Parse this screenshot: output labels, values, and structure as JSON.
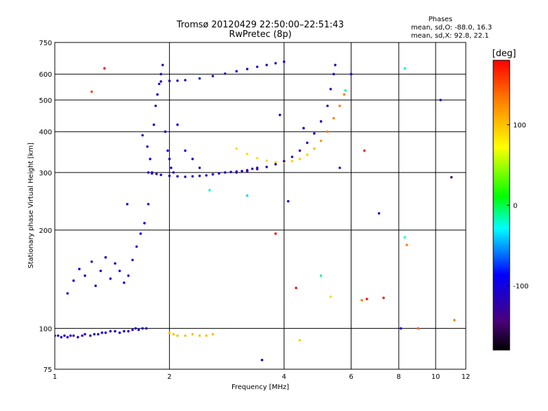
{
  "chart_data": {
    "type": "scatter",
    "title": "Tromsø 20120429 22:50:00–22:51:43",
    "subtitle": "RwPretec (8p)",
    "xlabel": "Frequency [MHz]",
    "ylabel": "Stationary phase Virtual Height [km]",
    "xscale": "log",
    "yscale": "log",
    "xlim": [
      1,
      12
    ],
    "ylim": [
      75,
      750
    ],
    "x_ticks": [
      1,
      2,
      4,
      6,
      8,
      10,
      12
    ],
    "x_tick_labels": [
      "1",
      "2",
      "4",
      "6",
      "8",
      "10",
      "12"
    ],
    "x_grid": [
      2,
      4,
      6,
      8,
      10
    ],
    "y_ticks": [
      75,
      100,
      200,
      300,
      400,
      500,
      600,
      750
    ],
    "y_tick_labels": [
      "75",
      "100",
      "200",
      "300",
      "400",
      "500",
      "600",
      "750"
    ],
    "y_grid": [
      100,
      200,
      300,
      400,
      500,
      600
    ],
    "grid": true,
    "phase_stats": {
      "heading": "Phases",
      "line1": "mean, sd,O: -88.0, 16.3",
      "line2": "mean, sd,X:  92.8, 22.1"
    },
    "colorbar": {
      "label": "[deg]",
      "range": [
        -180,
        180
      ],
      "ticks": [
        100,
        0,
        -100
      ],
      "tick_labels": [
        "100",
        "0",
        "-100"
      ],
      "colors": [
        "#ff0000",
        "#ff8000",
        "#ffff00",
        "#00ff00",
        "#00ffff",
        "#0000ff",
        "#4a007a",
        "#000000"
      ]
    },
    "series": [
      {
        "points": [
          [
            1.0,
            95,
            -110
          ],
          [
            1.02,
            95,
            -110
          ],
          [
            1.04,
            94,
            -110
          ],
          [
            1.06,
            95,
            -110
          ],
          [
            1.08,
            94,
            -110
          ],
          [
            1.1,
            95,
            -110
          ],
          [
            1.12,
            95,
            -110
          ],
          [
            1.15,
            94,
            -110
          ],
          [
            1.18,
            95,
            -110
          ],
          [
            1.2,
            96,
            -110
          ],
          [
            1.24,
            95,
            -110
          ],
          [
            1.27,
            96,
            -110
          ],
          [
            1.3,
            96,
            -110
          ],
          [
            1.33,
            97,
            -110
          ],
          [
            1.36,
            97,
            -110
          ],
          [
            1.4,
            98,
            -110
          ],
          [
            1.44,
            98,
            -110
          ],
          [
            1.48,
            97,
            -110
          ],
          [
            1.52,
            98,
            -110
          ],
          [
            1.56,
            98,
            -110
          ],
          [
            1.6,
            99,
            -110
          ],
          [
            1.63,
            100,
            -110
          ],
          [
            1.66,
            99,
            -110
          ],
          [
            1.7,
            100,
            -110
          ],
          [
            1.74,
            100,
            -110
          ]
        ]
      },
      {
        "points": [
          [
            1.08,
            128,
            -100
          ],
          [
            1.12,
            140,
            -100
          ],
          [
            1.16,
            152,
            -100
          ],
          [
            1.2,
            145,
            -100
          ],
          [
            1.25,
            160,
            -100
          ],
          [
            1.28,
            135,
            -100
          ],
          [
            1.32,
            150,
            -100
          ],
          [
            1.36,
            165,
            -100
          ],
          [
            1.4,
            142,
            -100
          ],
          [
            1.44,
            158,
            -100
          ],
          [
            1.48,
            150,
            -100
          ],
          [
            1.52,
            138,
            -100
          ],
          [
            1.56,
            145,
            -100
          ],
          [
            1.6,
            162,
            -100
          ],
          [
            1.64,
            178,
            -100
          ],
          [
            1.68,
            195,
            -100
          ],
          [
            1.72,
            210,
            -100
          ],
          [
            1.76,
            240,
            -100
          ]
        ]
      },
      {
        "points": [
          [
            1.76,
            300,
            -110
          ],
          [
            1.8,
            298,
            -110
          ],
          [
            1.85,
            297,
            -110
          ],
          [
            1.9,
            295,
            -110
          ],
          [
            2.0,
            293,
            -110
          ],
          [
            2.1,
            292,
            -110
          ],
          [
            2.2,
            291,
            -110
          ],
          [
            2.3,
            292,
            -110
          ],
          [
            2.4,
            293,
            -110
          ],
          [
            2.5,
            294,
            -110
          ],
          [
            2.6,
            296,
            -110
          ],
          [
            2.7,
            298,
            -110
          ],
          [
            2.8,
            300,
            -110
          ],
          [
            2.9,
            301,
            -110
          ],
          [
            3.0,
            302,
            -110
          ],
          [
            3.1,
            303,
            -110
          ],
          [
            3.2,
            305,
            -110
          ],
          [
            3.3,
            308,
            -100
          ],
          [
            3.4,
            310,
            -100
          ]
        ]
      },
      {
        "points": [
          [
            1.7,
            390,
            -110
          ],
          [
            1.75,
            360,
            -110
          ],
          [
            1.78,
            330,
            -110
          ],
          [
            1.8,
            300,
            -110
          ],
          [
            1.82,
            420,
            -110
          ],
          [
            1.84,
            480,
            -110
          ],
          [
            1.86,
            520,
            -110
          ],
          [
            1.88,
            560,
            -110
          ],
          [
            1.9,
            600,
            -110
          ],
          [
            1.92,
            640,
            -110
          ],
          [
            1.95,
            400,
            -110
          ],
          [
            1.98,
            350,
            -110
          ],
          [
            2.0,
            330,
            -110
          ],
          [
            2.02,
            310,
            -110
          ],
          [
            2.05,
            300,
            -110
          ],
          [
            2.1,
            420,
            -110
          ],
          [
            2.2,
            350,
            -110
          ],
          [
            2.3,
            330,
            -110
          ],
          [
            2.4,
            310,
            -110
          ]
        ]
      },
      {
        "points": [
          [
            1.9,
            570,
            -110
          ],
          [
            2.0,
            572,
            -110
          ],
          [
            2.1,
            573,
            -110
          ],
          [
            2.2,
            575,
            -110
          ],
          [
            2.4,
            582,
            -110
          ],
          [
            2.6,
            592,
            -110
          ],
          [
            2.8,
            602,
            -110
          ],
          [
            3.0,
            612,
            -110
          ],
          [
            3.2,
            622,
            -110
          ],
          [
            3.4,
            632,
            -110
          ],
          [
            3.6,
            640,
            -110
          ],
          [
            3.8,
            648,
            -110
          ],
          [
            4.0,
            655,
            -100
          ]
        ]
      },
      {
        "points": [
          [
            3.0,
            355,
            110
          ],
          [
            3.2,
            342,
            110
          ],
          [
            3.4,
            332,
            110
          ],
          [
            3.6,
            326,
            110
          ],
          [
            3.8,
            323,
            110
          ],
          [
            4.0,
            323,
            110
          ],
          [
            4.2,
            325,
            115
          ],
          [
            4.4,
            330,
            115
          ],
          [
            4.6,
            340,
            115
          ],
          [
            4.8,
            355,
            120
          ],
          [
            5.0,
            375,
            130
          ],
          [
            5.2,
            400,
            140
          ],
          [
            5.4,
            440,
            140
          ],
          [
            5.6,
            480,
            140
          ],
          [
            5.75,
            520,
            140
          ]
        ]
      },
      {
        "points": [
          [
            3.0,
            300,
            -130
          ],
          [
            3.2,
            303,
            -130
          ],
          [
            3.4,
            307,
            -130
          ],
          [
            3.6,
            312,
            -120
          ],
          [
            3.8,
            318,
            -120
          ],
          [
            4.0,
            325,
            -120
          ],
          [
            4.2,
            335,
            -120
          ],
          [
            4.4,
            350,
            -120
          ],
          [
            4.6,
            370,
            -110
          ],
          [
            4.8,
            395,
            -110
          ],
          [
            5.0,
            430,
            -110
          ],
          [
            5.2,
            480,
            -110
          ],
          [
            5.3,
            540,
            -110
          ],
          [
            5.4,
            600,
            -110
          ],
          [
            5.45,
            640,
            -110
          ]
        ]
      },
      {
        "points": [
          [
            2.0,
            97,
            120
          ],
          [
            2.05,
            96,
            120
          ],
          [
            2.1,
            95,
            120
          ],
          [
            2.2,
            95,
            120
          ],
          [
            2.3,
            96,
            120
          ],
          [
            2.4,
            95,
            120
          ],
          [
            2.5,
            95,
            120
          ],
          [
            2.6,
            96,
            120
          ]
        ]
      },
      {
        "points": [
          [
            1.25,
            530,
            160
          ],
          [
            1.35,
            625,
            175
          ],
          [
            1.55,
            240,
            -110
          ],
          [
            2.55,
            265,
            -20
          ],
          [
            3.2,
            255,
            -40
          ],
          [
            3.5,
            80,
            -100
          ],
          [
            3.8,
            195,
            175
          ],
          [
            3.9,
            450,
            -110
          ],
          [
            4.1,
            245,
            -110
          ],
          [
            4.3,
            133,
            175
          ],
          [
            4.4,
            92,
            115
          ],
          [
            4.5,
            410,
            -110
          ],
          [
            5.0,
            145,
            -10
          ],
          [
            5.3,
            125,
            110
          ],
          [
            5.6,
            310,
            -110
          ],
          [
            5.8,
            535,
            -10
          ],
          [
            6.0,
            600,
            -110
          ],
          [
            6.4,
            122,
            140
          ],
          [
            6.5,
            350,
            175
          ],
          [
            6.6,
            123,
            175
          ],
          [
            7.1,
            225,
            -110
          ],
          [
            7.3,
            124,
            175
          ],
          [
            8.1,
            100,
            -90
          ],
          [
            8.3,
            625,
            -20
          ],
          [
            8.3,
            190,
            -20
          ],
          [
            8.4,
            180,
            140
          ],
          [
            9.0,
            100,
            150
          ],
          [
            10.3,
            500,
            -110
          ],
          [
            11.0,
            290,
            -140
          ],
          [
            11.2,
            106,
            140
          ]
        ]
      }
    ]
  }
}
